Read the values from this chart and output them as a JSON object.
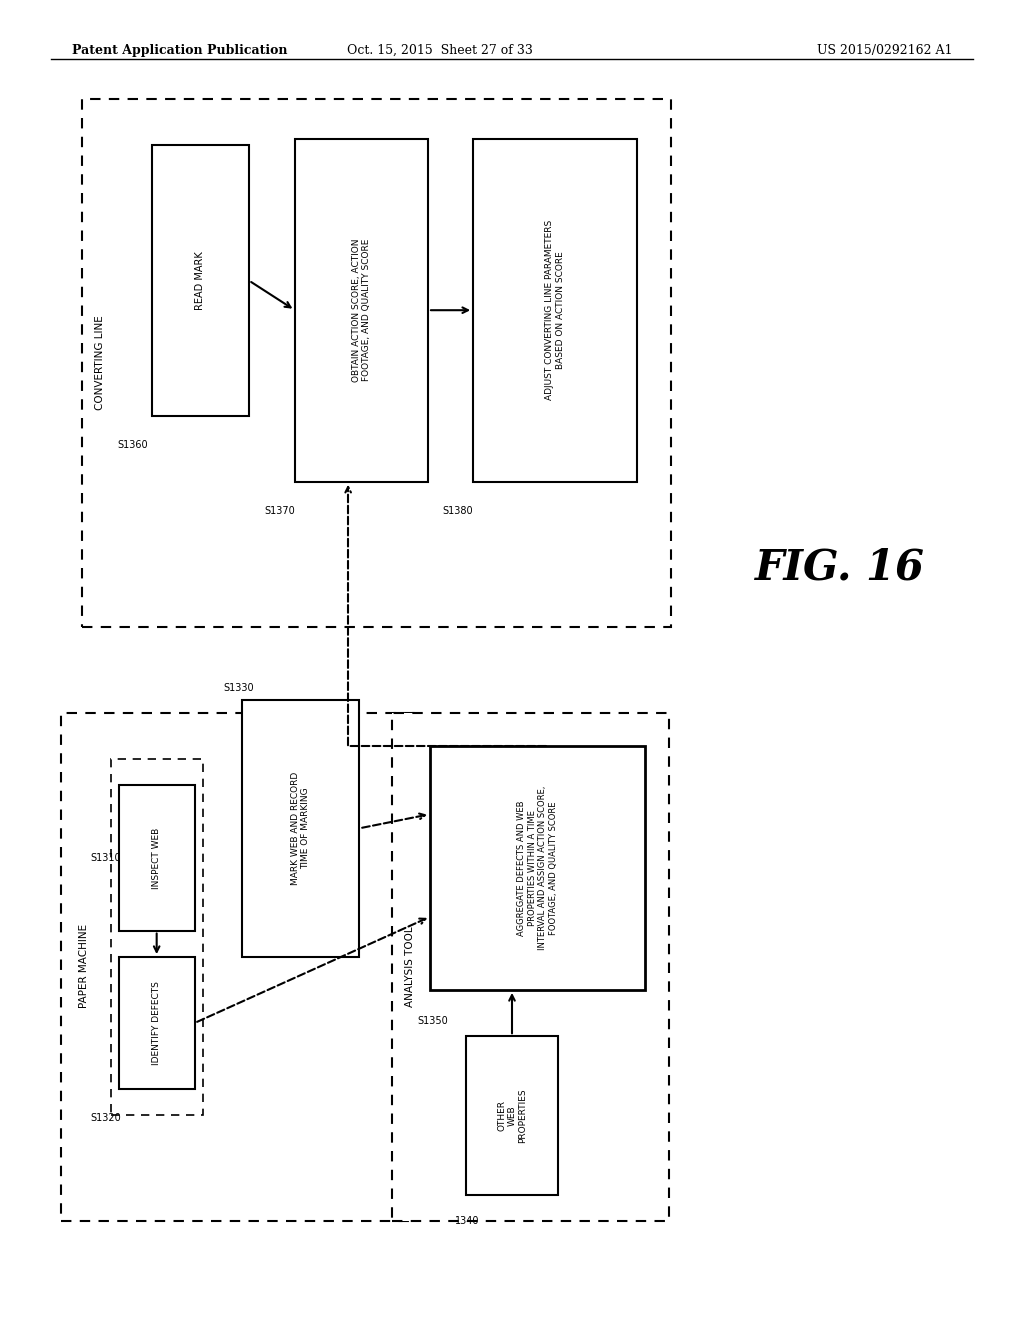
{
  "title_left": "Patent Application Publication",
  "title_mid": "Oct. 15, 2015  Sheet 27 of 33",
  "title_right": "US 2015/0292162 A1",
  "fig_label": "FIG. 16",
  "bg_color": "#ffffff"
}
